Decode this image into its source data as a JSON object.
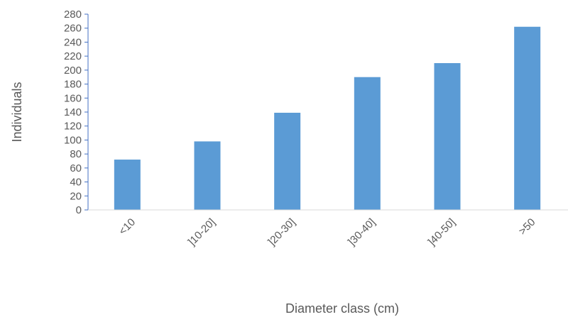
{
  "chart_data": {
    "type": "bar",
    "categories": [
      "<10",
      "]10-20]",
      "]20-30]",
      "]30-40]",
      "]40-50]",
      ">50"
    ],
    "values": [
      72,
      98,
      139,
      190,
      210,
      262
    ],
    "xlabel": "Diameter class (cm)",
    "ylabel": "Individuals",
    "ylim": [
      0,
      280
    ],
    "yticks": [
      0,
      20,
      40,
      60,
      80,
      100,
      120,
      140,
      160,
      180,
      200,
      220,
      240,
      260,
      280
    ],
    "grid": false,
    "legend": "none",
    "bar_color": "#5b9bd5",
    "axis_color": "#4472c4",
    "text_color": "#595959"
  }
}
